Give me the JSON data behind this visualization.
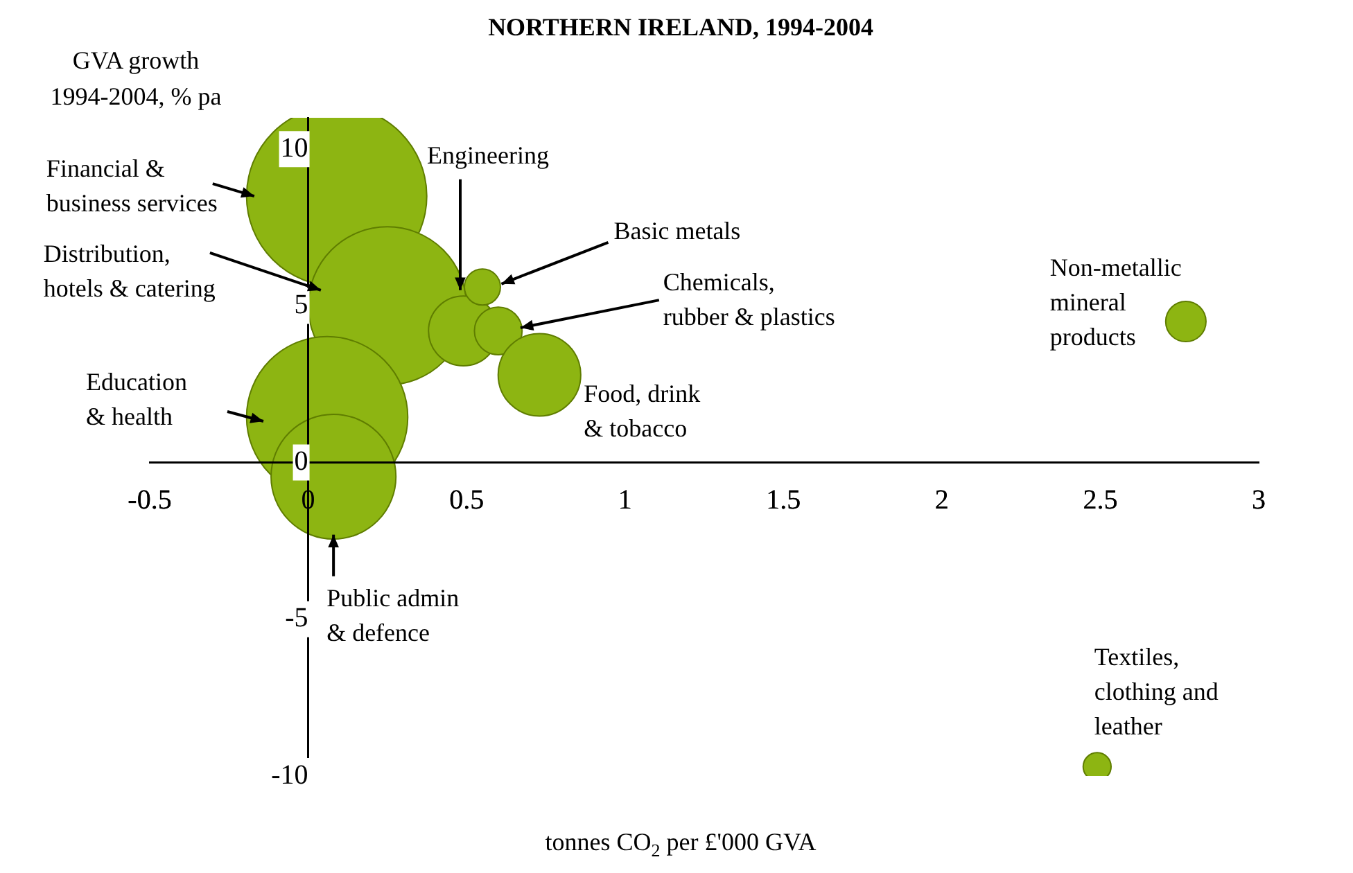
{
  "chart_data": {
    "type": "bubble",
    "title": "NORTHERN IRELAND, 1994-2004",
    "xlabel": "tonnes CO$_{2}$ per £'000 GVA",
    "ylabel": "GVA growth\n1994-2004, % pa",
    "series": [
      {
        "color": "#8db512",
        "x": [
          0.09,
          0.25,
          0.06,
          0.08,
          0.49,
          0.55,
          0.6,
          0.73,
          2.77,
          2.49
        ],
        "values": [
          8.5,
          5.0,
          1.45,
          -0.45,
          4.2,
          5.6,
          4.2,
          2.8,
          4.5,
          -9.7
        ],
        "sizes": [
          1,
          0.77,
          0.8,
          0.48,
          0.15,
          0.04,
          0.07,
          0.21,
          0.05,
          0.024
        ]
      }
    ],
    "xlim": [
      -0.5,
      3
    ],
    "xticks": [
      -0.5,
      0,
      0.5,
      1,
      1.5,
      2,
      2.5,
      3
    ],
    "ylim": [
      -10,
      11
    ],
    "yticks": [
      -10,
      -5,
      0,
      5,
      10
    ],
    "grid": false,
    "legend": false,
    "annotations": [
      {
        "text": "Financial &\nbusiness services",
        "x": -0.17,
        "y": 8.5
      },
      {
        "text": "Distribution,\nhotels & catering",
        "x": 0.04,
        "y": 5.5
      },
      "Education\n& health",
      {
        "text": "Public admin\n& defence",
        "x": 0.08,
        "y": -2.3
      },
      {
        "text": "Engineering",
        "x": 0.48,
        "y": 5.5
      },
      {
        "text": "Basic metals",
        "x": 0.61,
        "y": 5.7
      },
      {
        "text": "Chemicals,\nrubber & plastics",
        "x": 0.67,
        "y": 4.3
      },
      {
        "text": "Food, drink\n& tobacco",
        "x": 0.73,
        "y": 2.8
      },
      {
        "text": "Non-metallic\nmineral\nproducts",
        "x": 2.77,
        "y": 4.5
      },
      {
        "text": "Textiles,\nclothing and\nleather",
        "x": 2.49,
        "y": -9.7
      }
    ]
  }
}
